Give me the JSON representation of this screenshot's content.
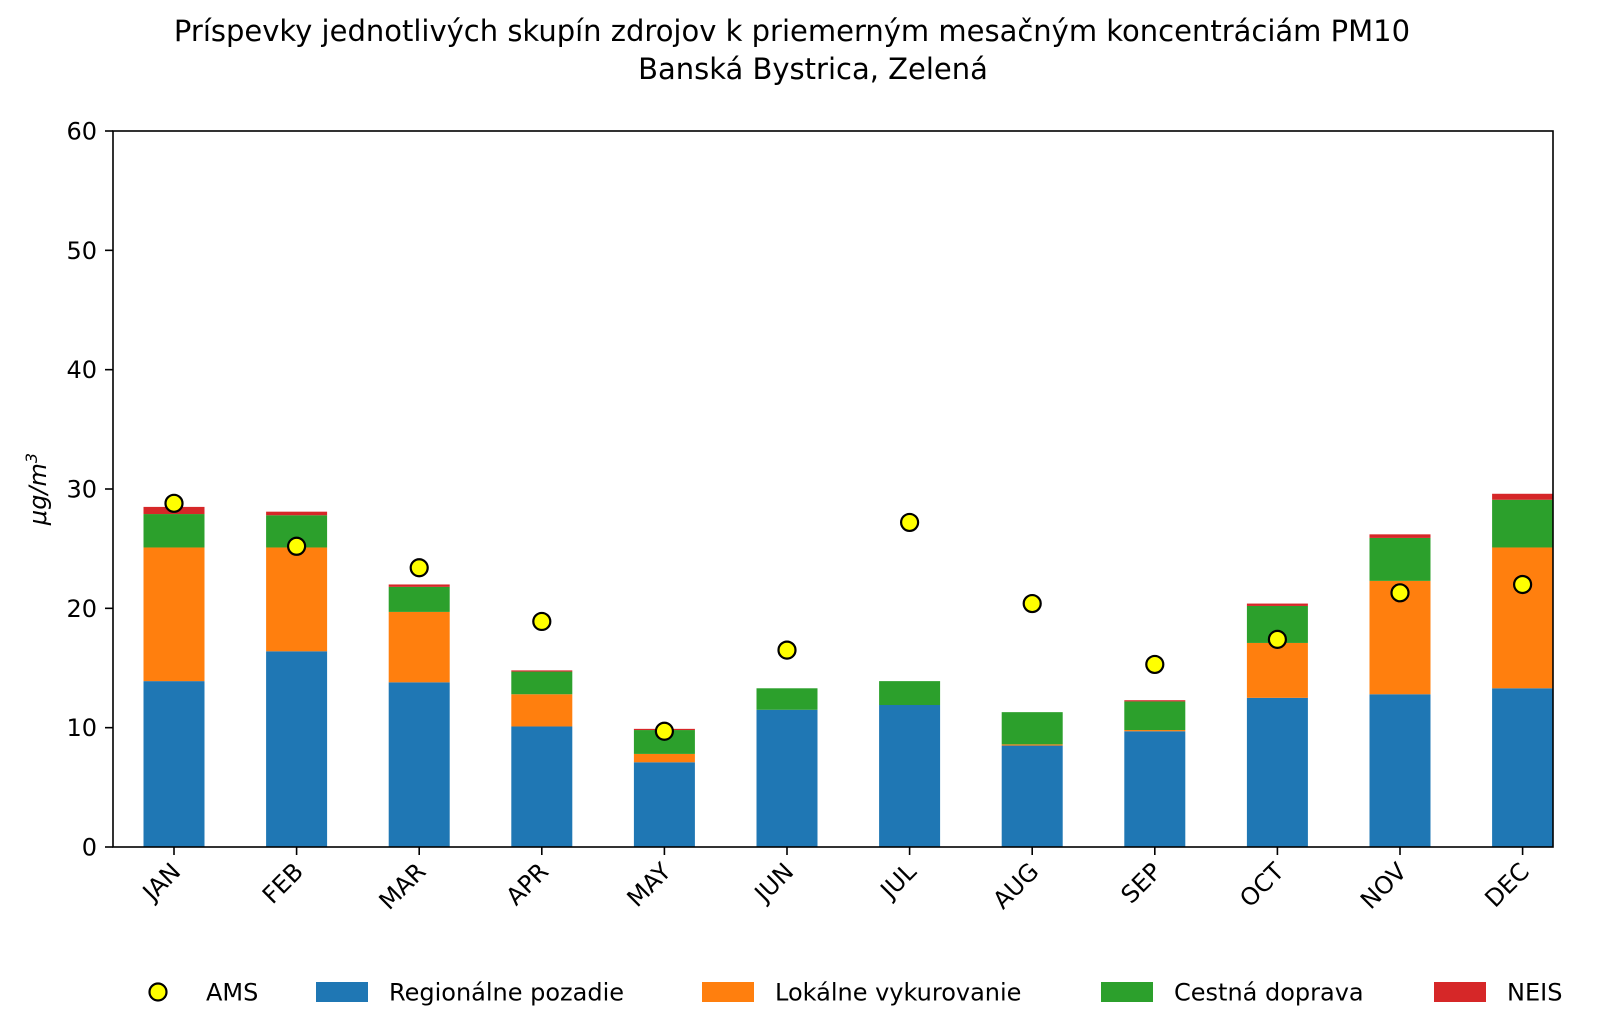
{
  "chart_data": {
    "type": "bar",
    "stacked": true,
    "title": "Príspevky jednotlivých skupín zdrojov k priemerným mesačným koncentráciám PM10",
    "subtitle": "Banská Bystrica, Zelená",
    "xlabel": "",
    "ylabel": "μg/m3",
    "ylim": [
      0,
      60
    ],
    "yticks": [
      0,
      10,
      20,
      30,
      40,
      50,
      60
    ],
    "categories": [
      "JAN",
      "FEB",
      "MAR",
      "APR",
      "MAY",
      "JUN",
      "JUL",
      "AUG",
      "SEP",
      "OCT",
      "NOV",
      "DEC"
    ],
    "series": [
      {
        "name": "Regionálne pozadie",
        "color": "#1f77b4",
        "values": [
          13.9,
          16.4,
          13.8,
          10.1,
          7.1,
          11.5,
          11.9,
          8.5,
          9.7,
          12.5,
          12.8,
          13.3
        ]
      },
      {
        "name": "Lokálne vykurovanie",
        "color": "#ff7f0e",
        "values": [
          11.2,
          8.7,
          5.9,
          2.7,
          0.7,
          0.0,
          0.0,
          0.1,
          0.1,
          4.6,
          9.5,
          11.8
        ]
      },
      {
        "name": "Cestná doprava",
        "color": "#2ca02c",
        "values": [
          2.8,
          2.7,
          2.1,
          1.9,
          2.0,
          1.8,
          2.0,
          2.7,
          2.4,
          3.1,
          3.6,
          4.0
        ]
      },
      {
        "name": "NEIS",
        "color": "#d62728",
        "values": [
          0.6,
          0.3,
          0.2,
          0.1,
          0.1,
          0.0,
          0.0,
          0.0,
          0.1,
          0.2,
          0.3,
          0.5
        ]
      }
    ],
    "points": {
      "name": "AMS",
      "color": "#ffff00",
      "values": [
        28.8,
        25.2,
        23.4,
        18.9,
        9.7,
        16.5,
        27.2,
        20.4,
        15.3,
        17.4,
        21.3,
        22.0
      ]
    },
    "legend_position": "bottom",
    "grid": false
  }
}
